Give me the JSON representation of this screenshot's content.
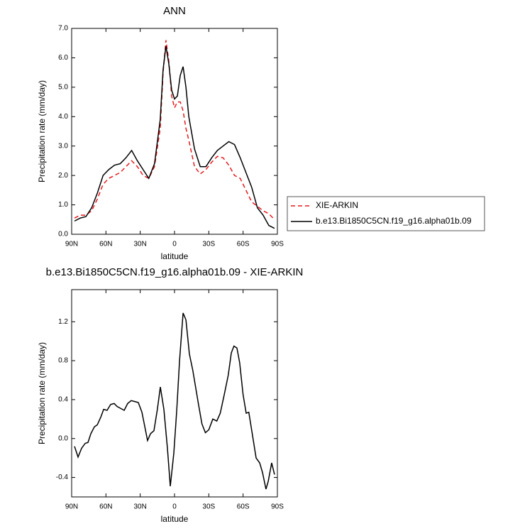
{
  "chart_data": [
    {
      "type": "line",
      "title": "ANN",
      "xlabel": "latitude",
      "ylabel": "Precipitation rate (mm/day)",
      "x": [
        87.5,
        82.5,
        77.5,
        72.5,
        67.5,
        62.5,
        57.5,
        52.5,
        47.5,
        42.5,
        37.5,
        32.5,
        27.5,
        22.5,
        17.5,
        12.5,
        10,
        7.5,
        5,
        2.5,
        0,
        -2.5,
        -5,
        -7.5,
        -10,
        -12.5,
        -17.5,
        -22.5,
        -27.5,
        -32.5,
        -37.5,
        -42.5,
        -47.5,
        -52.5,
        -57.5,
        -62.5,
        -67.5,
        -72.5,
        -77.5,
        -82.5,
        -87.5
      ],
      "series": [
        {
          "name": "XIE-ARKIN",
          "color": "#e8191d",
          "line_style": "dashed",
          "values": [
            0.55,
            0.65,
            0.65,
            0.8,
            1.2,
            1.7,
            1.9,
            2.0,
            2.1,
            2.3,
            2.5,
            2.3,
            2.0,
            1.9,
            2.3,
            3.6,
            5.5,
            6.6,
            5.9,
            4.7,
            4.3,
            4.5,
            4.5,
            4.2,
            3.6,
            3.2,
            2.3,
            2.05,
            2.2,
            2.45,
            2.65,
            2.6,
            2.35,
            2.0,
            1.9,
            1.5,
            1.1,
            0.95,
            0.8,
            0.7,
            0.5
          ]
        },
        {
          "name": "b.e13.Bi1850C5CN.f19_g16.alpha01b.09",
          "color": "#000000",
          "line_style": "solid",
          "values": [
            0.45,
            0.55,
            0.6,
            0.9,
            1.4,
            2.0,
            2.2,
            2.35,
            2.4,
            2.6,
            2.85,
            2.5,
            2.2,
            1.9,
            2.4,
            3.9,
            5.6,
            6.4,
            5.8,
            4.9,
            4.6,
            4.7,
            5.4,
            5.7,
            5.0,
            4.0,
            2.9,
            2.3,
            2.3,
            2.6,
            2.85,
            3.0,
            3.15,
            3.05,
            2.6,
            2.1,
            1.6,
            0.9,
            0.65,
            0.3,
            0.2
          ]
        }
      ],
      "xlim": [
        90,
        -90
      ],
      "xticks": [
        {
          "value": 90,
          "label": "90N"
        },
        {
          "value": 60,
          "label": "60N"
        },
        {
          "value": 30,
          "label": "30N"
        },
        0,
        {
          "value": -30,
          "label": "30S"
        },
        {
          "value": -60,
          "label": "60S"
        },
        {
          "value": -90,
          "label": "90S"
        }
      ],
      "ylim": [
        0,
        7
      ],
      "yticks": [
        {
          "value": 0,
          "label": "0.0"
        },
        {
          "value": 1,
          "label": "1.0"
        },
        {
          "value": 2,
          "label": "2.0"
        },
        {
          "value": 3,
          "label": "3.0"
        },
        {
          "value": 4,
          "label": "4.0"
        },
        {
          "value": 5,
          "label": "5.0"
        },
        {
          "value": 6,
          "label": "6.0"
        },
        {
          "value": 7,
          "label": "7.0"
        }
      ],
      "legend": "right"
    },
    {
      "type": "line",
      "title": "b.e13.Bi1850C5CN.f19_g16.alpha01b.09 - XIE-ARKIN",
      "xlabel": "latitude",
      "ylabel": "Precipitation rate (mm/day)",
      "x": [
        87.5,
        84.4,
        81.3,
        78.2,
        75.7,
        73.2,
        70.1,
        67.6,
        64.5,
        62,
        59,
        55.9,
        52.8,
        50.3,
        47.2,
        44,
        41,
        37.9,
        34.8,
        31.7,
        28.5,
        23.6,
        21,
        18,
        15,
        12.4,
        9.3,
        6.2,
        3.7,
        0.6,
        -2,
        -4.4,
        -7.5,
        -10,
        -13,
        -16,
        -21,
        -24,
        -27,
        -30,
        -33.5,
        -37,
        -40,
        -43.5,
        -47,
        -49.7,
        -52,
        -54.6,
        -57,
        -60,
        -62.7,
        -65,
        -68,
        -71.4,
        -74.5,
        -77,
        -80,
        -82,
        -85,
        -87.5
      ],
      "values": [
        -0.08,
        -0.19,
        -0.1,
        -0.05,
        -0.04,
        0.05,
        0.12,
        0.14,
        0.22,
        0.3,
        0.29,
        0.35,
        0.36,
        0.33,
        0.31,
        0.29,
        0.36,
        0.39,
        0.38,
        0.37,
        0.27,
        -0.02,
        0.05,
        0.08,
        0.3,
        0.53,
        0.3,
        -0.1,
        -0.49,
        -0.15,
        0.3,
        0.8,
        1.29,
        1.22,
        0.87,
        0.7,
        0.35,
        0.15,
        0.06,
        0.09,
        0.2,
        0.18,
        0.26,
        0.45,
        0.65,
        0.88,
        0.95,
        0.93,
        0.78,
        0.45,
        0.26,
        0.27,
        0.05,
        -0.2,
        -0.25,
        -0.35,
        -0.52,
        -0.44,
        -0.25,
        -0.37
      ],
      "color": "#000000",
      "xlim": [
        90,
        -90
      ],
      "xticks": [
        {
          "value": 90,
          "label": "90N"
        },
        {
          "value": 60,
          "label": "60N"
        },
        {
          "value": 30,
          "label": "30N"
        },
        0,
        {
          "value": -30,
          "label": "30S"
        },
        {
          "value": -60,
          "label": "60S"
        },
        {
          "value": -90,
          "label": "90S"
        }
      ],
      "ylim": [
        -0.6,
        1.53
      ],
      "yticks": [
        -0.4,
        {
          "value": 0,
          "label": "0.0"
        },
        0.4,
        0.8,
        1.2
      ]
    }
  ]
}
